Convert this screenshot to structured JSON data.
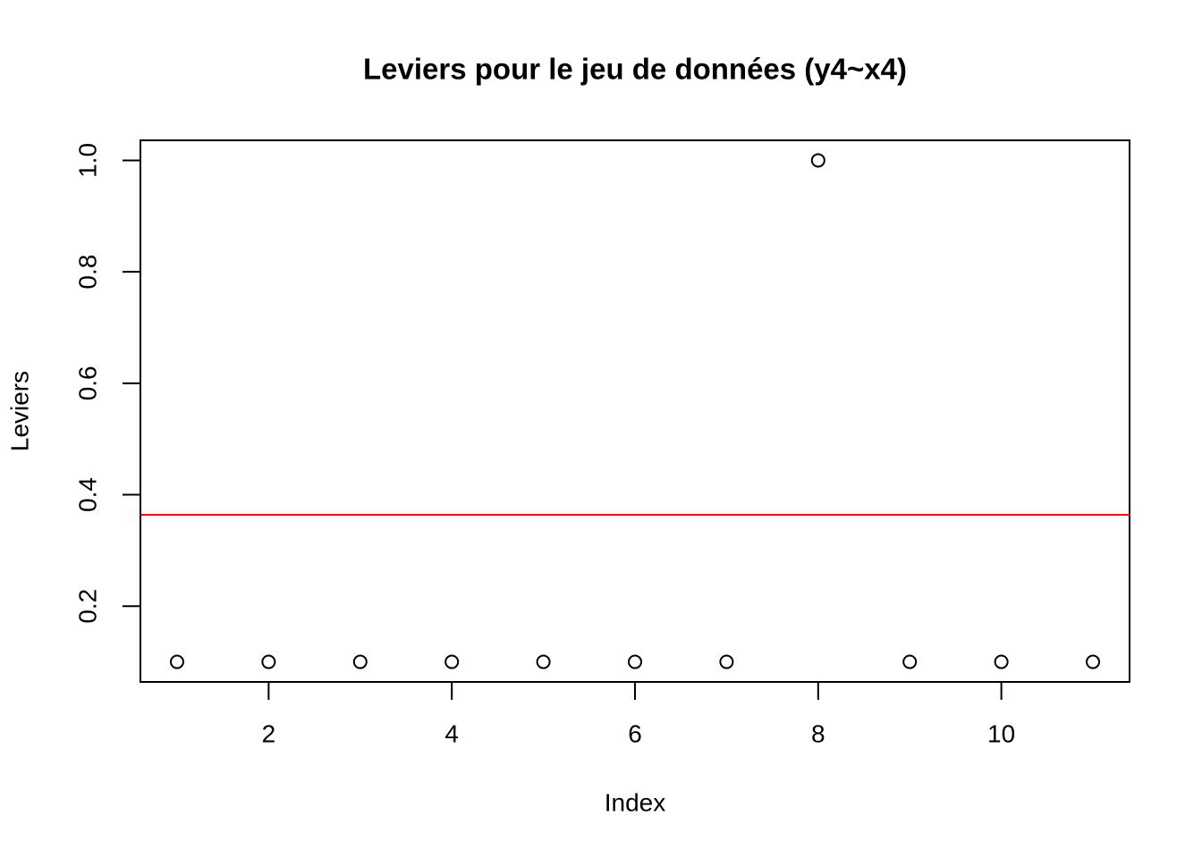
{
  "chart_data": {
    "type": "scatter",
    "title": "Leviers pour le jeu de données (y4~x4)",
    "x_label": "Index",
    "y_label": "Leviers",
    "x": [
      1,
      2,
      3,
      4,
      5,
      6,
      7,
      8,
      9,
      10,
      11
    ],
    "values": [
      0.1,
      0.1,
      0.1,
      0.1,
      0.1,
      0.1,
      0.1,
      1.0,
      0.1,
      0.1,
      0.1
    ],
    "color": "#000000",
    "xlim": [
      0.6,
      11.4
    ],
    "ylim": [
      0.064,
      1.036
    ],
    "xticks": [
      2,
      4,
      6,
      8,
      10
    ],
    "yticks": [
      0.2,
      0.4,
      0.6,
      0.8,
      {
        "value": 1,
        "label": "1.0"
      }
    ],
    "hline": {
      "value": 0.364,
      "color": "#ff0000"
    },
    "grid": false
  }
}
